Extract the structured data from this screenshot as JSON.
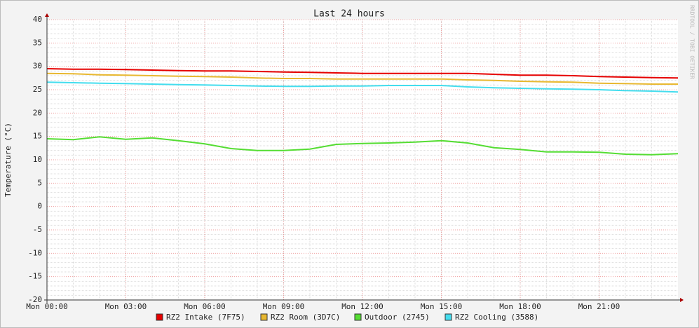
{
  "chart_data": {
    "type": "line",
    "title": "Last 24 hours",
    "y_label": "Temperature (°C)",
    "watermark": "RRDTOOL / TOBI OETIKER",
    "x": [
      0,
      1,
      2,
      3,
      4,
      5,
      6,
      7,
      8,
      9,
      10,
      11,
      12,
      13,
      14,
      15,
      16,
      17,
      18,
      19,
      20,
      21,
      22,
      23,
      24
    ],
    "xlim": [
      0,
      24
    ],
    "xticks": [
      {
        "value": 0,
        "label": "Mon 00:00"
      },
      {
        "value": 3,
        "label": "Mon 03:00"
      },
      {
        "value": 6,
        "label": "Mon 06:00"
      },
      {
        "value": 9,
        "label": "Mon 09:00"
      },
      {
        "value": 12,
        "label": "Mon 12:00"
      },
      {
        "value": 15,
        "label": "Mon 15:00"
      },
      {
        "value": 18,
        "label": "Mon 18:00"
      },
      {
        "value": 21,
        "label": "Mon 21:00"
      }
    ],
    "ylim": [
      -20,
      40
    ],
    "yticks": [
      -20,
      -15,
      -10,
      -5,
      0,
      5,
      10,
      15,
      20,
      25,
      30,
      35,
      40
    ],
    "grid": true,
    "legend": "bottom",
    "series": [
      {
        "name": "RZ2 Intake (7F75)",
        "color": "#e60000",
        "values": [
          29.5,
          29.4,
          29.4,
          29.3,
          29.2,
          29.1,
          29.0,
          29.0,
          28.9,
          28.8,
          28.7,
          28.6,
          28.5,
          28.5,
          28.5,
          28.5,
          28.5,
          28.3,
          28.1,
          28.1,
          28.0,
          27.8,
          27.7,
          27.6,
          27.5
        ]
      },
      {
        "name": "RZ2 Room (3D7C)",
        "color": "#e8b830",
        "values": [
          28.5,
          28.4,
          28.2,
          28.1,
          28.0,
          27.9,
          27.8,
          27.7,
          27.5,
          27.4,
          27.4,
          27.3,
          27.3,
          27.3,
          27.3,
          27.3,
          27.1,
          27.0,
          26.8,
          26.7,
          26.6,
          26.4,
          26.3,
          26.2,
          26.2
        ]
      },
      {
        "name": "Outdoor (2745)",
        "color": "#55dd33",
        "values": [
          14.5,
          14.3,
          14.9,
          14.4,
          14.7,
          14.1,
          13.4,
          12.4,
          12.0,
          12.0,
          12.3,
          13.3,
          13.5,
          13.6,
          13.8,
          14.1,
          13.6,
          12.6,
          12.2,
          11.7,
          11.7,
          11.6,
          11.2,
          11.1,
          11.3
        ]
      },
      {
        "name": "RZ2 Cooling (3588)",
        "color": "#44ddee",
        "values": [
          26.6,
          26.5,
          26.4,
          26.3,
          26.2,
          26.1,
          26.0,
          25.9,
          25.8,
          25.7,
          25.7,
          25.8,
          25.8,
          25.9,
          25.9,
          25.9,
          25.6,
          25.4,
          25.3,
          25.2,
          25.1,
          25.0,
          24.8,
          24.7,
          24.5
        ]
      }
    ]
  }
}
